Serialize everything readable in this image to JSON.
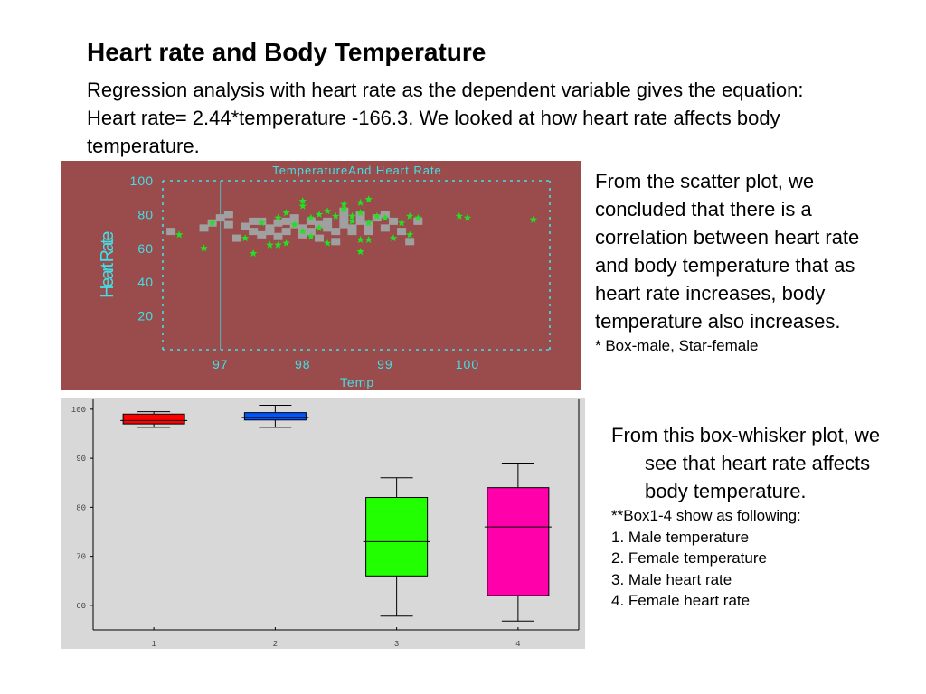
{
  "slide": {
    "title": "Heart rate and Body Temperature",
    "intro": "Regression analysis with heart rate as the dependent variable gives the equation: Heart rate= 2.44*temperature -166.3. We looked at how heart rate affects body temperature.",
    "scatter_note": "From the scatter plot, we concluded that there is a correlation between heart rate and body temperature that as heart rate increases, body temperature also increases.",
    "scatter_legend": "* Box-male, Star-female",
    "box_note_main": "From this box-whisker plot, we see that heart rate affects body temperature.",
    "box_note_heading": "**Box1-4 show as following:",
    "box_note_items": [
      "1. Male temperature",
      "2. Female temperature",
      "3. Male heart rate",
      "4. Female heart rate"
    ]
  },
  "colors": {
    "scatter_background": "#9a4b4b",
    "scatter_axis": "#40e0e8",
    "male_marker": "#a0a0a0",
    "female_marker": "#22e022",
    "box_background": "#d8d8d8",
    "box1": "#ff0000",
    "box2": "#0055ff",
    "box3": "#22ff00",
    "box4": "#ff00aa"
  },
  "chart_data": [
    {
      "type": "scatter",
      "title": "TemperatureAnd Heart Rate",
      "xlabel": "Temp",
      "ylabel": "Heart Rate",
      "xlim": [
        96.3,
        101
      ],
      "ylim": [
        0,
        100
      ],
      "x_ticks": [
        97,
        98,
        99,
        100
      ],
      "y_ticks": [
        20,
        40,
        60,
        80,
        100
      ],
      "reference_line_x": 97,
      "series": [
        {
          "name": "Box-male",
          "marker": "square",
          "points": [
            [
              96.4,
              70
            ],
            [
              96.8,
              72
            ],
            [
              96.9,
              75
            ],
            [
              97.0,
              78
            ],
            [
              97.1,
              80
            ],
            [
              97.1,
              74
            ],
            [
              97.2,
              66
            ],
            [
              97.3,
              73
            ],
            [
              97.4,
              70
            ],
            [
              97.4,
              76
            ],
            [
              97.5,
              68
            ],
            [
              97.5,
              76
            ],
            [
              97.6,
              70
            ],
            [
              97.6,
              72
            ],
            [
              97.7,
              75
            ],
            [
              97.7,
              67
            ],
            [
              97.8,
              76
            ],
            [
              97.8,
              70
            ],
            [
              97.9,
              74
            ],
            [
              97.9,
              78
            ],
            [
              98.0,
              72
            ],
            [
              98.0,
              68
            ],
            [
              98.1,
              76
            ],
            [
              98.1,
              70
            ],
            [
              98.2,
              74
            ],
            [
              98.2,
              66
            ],
            [
              98.3,
              72
            ],
            [
              98.3,
              76
            ],
            [
              98.4,
              70
            ],
            [
              98.4,
              64
            ],
            [
              98.5,
              74
            ],
            [
              98.5,
              78
            ],
            [
              98.5,
              82
            ],
            [
              98.6,
              70
            ],
            [
              98.6,
              72
            ],
            [
              98.7,
              76
            ],
            [
              98.7,
              80
            ],
            [
              98.8,
              70
            ],
            [
              98.8,
              74
            ],
            [
              98.9,
              78
            ],
            [
              99.0,
              72
            ],
            [
              99.0,
              80
            ],
            [
              99.1,
              76
            ],
            [
              99.2,
              70
            ],
            [
              99.3,
              64
            ],
            [
              99.4,
              76
            ]
          ]
        },
        {
          "name": "Star-female",
          "marker": "star",
          "points": [
            [
              96.5,
              68
            ],
            [
              96.8,
              60
            ],
            [
              96.9,
              75
            ],
            [
              97.3,
              66
            ],
            [
              97.4,
              57
            ],
            [
              97.5,
              75
            ],
            [
              97.6,
              62
            ],
            [
              97.7,
              62
            ],
            [
              97.7,
              78
            ],
            [
              97.8,
              63
            ],
            [
              97.8,
              81
            ],
            [
              97.9,
              74
            ],
            [
              98.0,
              70
            ],
            [
              98.0,
              85
            ],
            [
              98.0,
              88
            ],
            [
              98.1,
              78
            ],
            [
              98.1,
              67
            ],
            [
              98.2,
              80
            ],
            [
              98.2,
              72
            ],
            [
              98.3,
              63
            ],
            [
              98.3,
              82
            ],
            [
              98.4,
              79
            ],
            [
              98.5,
              83
            ],
            [
              98.5,
              86
            ],
            [
              98.6,
              76
            ],
            [
              98.6,
              79
            ],
            [
              98.7,
              81
            ],
            [
              98.7,
              87
            ],
            [
              98.7,
              65
            ],
            [
              98.7,
              58
            ],
            [
              98.8,
              75
            ],
            [
              98.8,
              89
            ],
            [
              98.8,
              65
            ],
            [
              98.9,
              79
            ],
            [
              99.0,
              78
            ],
            [
              99.1,
              66
            ],
            [
              99.2,
              75
            ],
            [
              99.3,
              68
            ],
            [
              99.3,
              79
            ],
            [
              99.4,
              78
            ],
            [
              99.9,
              79
            ],
            [
              100.0,
              78
            ],
            [
              100.8,
              77
            ]
          ]
        }
      ]
    },
    {
      "type": "box",
      "ylim": [
        55,
        102
      ],
      "y_ticks": [
        60,
        70,
        80,
        90,
        100
      ],
      "categories": [
        "1",
        "2",
        "3",
        "4"
      ],
      "boxes": [
        {
          "min": 96.3,
          "q1": 97.0,
          "median": 97.7,
          "q3": 99.0,
          "max": 99.5
        },
        {
          "min": 96.3,
          "q1": 97.8,
          "median": 98.3,
          "q3": 99.3,
          "max": 100.8
        },
        {
          "min": 57.8,
          "q1": 66.0,
          "median": 73.0,
          "q3": 82.0,
          "max": 86.0
        },
        {
          "min": 56.8,
          "q1": 62.0,
          "median": 76.0,
          "q3": 84.0,
          "max": 89.0
        }
      ]
    }
  ]
}
